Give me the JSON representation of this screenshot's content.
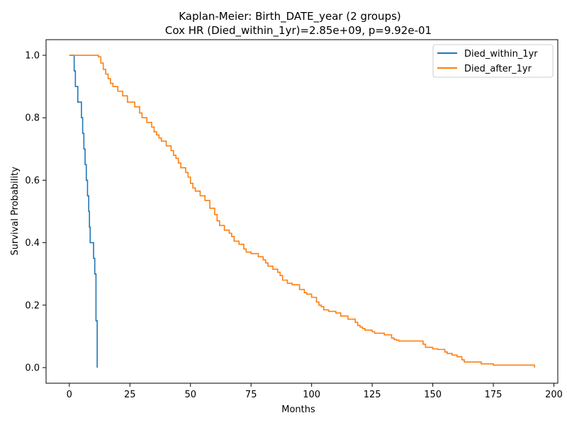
{
  "chart_data": {
    "type": "line",
    "title": "Kaplan-Meier: Birth_DATE_year (2 groups)",
    "subtitle": "Cox HR (Died_within_1yr)=2.85e+09, p=9.92e-01",
    "xlabel": "Months",
    "ylabel": "Survival Probability",
    "xlim": [
      -9.6,
      201.6
    ],
    "ylim": [
      -0.05,
      1.05
    ],
    "xticks": [
      0,
      25,
      50,
      75,
      100,
      125,
      150,
      175,
      200
    ],
    "yticks": [
      0.0,
      0.2,
      0.4,
      0.6,
      0.8,
      1.0
    ],
    "xtick_labels": [
      "0",
      "25",
      "50",
      "75",
      "100",
      "125",
      "150",
      "175",
      "200"
    ],
    "ytick_labels": [
      "0.0",
      "0.2",
      "0.4",
      "0.6",
      "0.8",
      "1.0"
    ],
    "grid": false,
    "legend_position": "top-right",
    "series": [
      {
        "name": "Died_within_1yr",
        "color": "#1f77b4",
        "step": true,
        "x": [
          0,
          2.0,
          2.5,
          3.5,
          5.0,
          5.5,
          6.0,
          6.5,
          7.0,
          7.5,
          8.0,
          8.3,
          8.6,
          9.0,
          10.0,
          10.5,
          11.0,
          11.5
        ],
        "y": [
          1.0,
          0.95,
          0.9,
          0.85,
          0.8,
          0.75,
          0.7,
          0.65,
          0.6,
          0.55,
          0.5,
          0.45,
          0.4,
          0.4,
          0.35,
          0.3,
          0.15,
          0.0
        ]
      },
      {
        "name": "Died_after_1yr",
        "color": "#ff7f0e",
        "step": true,
        "x": [
          0,
          12,
          13,
          14,
          15,
          16,
          17,
          18,
          20,
          22,
          24,
          27,
          29,
          30,
          32,
          34,
          35,
          36,
          37,
          38,
          40,
          42,
          43,
          44,
          45,
          46,
          48,
          49,
          50,
          51,
          52,
          54,
          56,
          58,
          60,
          61,
          62,
          64,
          66,
          67,
          68,
          70,
          72,
          73,
          75,
          78,
          80,
          81,
          82,
          84,
          86,
          87,
          88,
          90,
          92,
          95,
          97,
          98,
          100,
          102,
          103,
          104,
          105,
          107,
          110,
          112,
          115,
          118,
          119,
          120,
          121,
          122,
          125,
          126,
          130,
          133,
          134,
          135,
          136,
          138,
          146,
          147,
          150,
          152,
          155,
          156,
          158,
          160,
          162,
          163,
          170,
          175,
          192
        ],
        "y": [
          1.0,
          0.995,
          0.975,
          0.955,
          0.94,
          0.925,
          0.91,
          0.9,
          0.885,
          0.87,
          0.85,
          0.835,
          0.815,
          0.8,
          0.785,
          0.77,
          0.755,
          0.745,
          0.735,
          0.725,
          0.71,
          0.695,
          0.68,
          0.67,
          0.655,
          0.64,
          0.625,
          0.61,
          0.59,
          0.575,
          0.565,
          0.55,
          0.535,
          0.51,
          0.49,
          0.47,
          0.455,
          0.44,
          0.43,
          0.42,
          0.405,
          0.395,
          0.38,
          0.37,
          0.365,
          0.355,
          0.345,
          0.335,
          0.325,
          0.315,
          0.305,
          0.295,
          0.28,
          0.27,
          0.265,
          0.25,
          0.24,
          0.235,
          0.225,
          0.21,
          0.2,
          0.195,
          0.185,
          0.18,
          0.175,
          0.165,
          0.155,
          0.145,
          0.135,
          0.13,
          0.125,
          0.12,
          0.115,
          0.11,
          0.105,
          0.095,
          0.09,
          0.088,
          0.085,
          0.085,
          0.075,
          0.065,
          0.06,
          0.058,
          0.05,
          0.045,
          0.04,
          0.035,
          0.025,
          0.018,
          0.012,
          0.008,
          0.0
        ]
      }
    ]
  }
}
